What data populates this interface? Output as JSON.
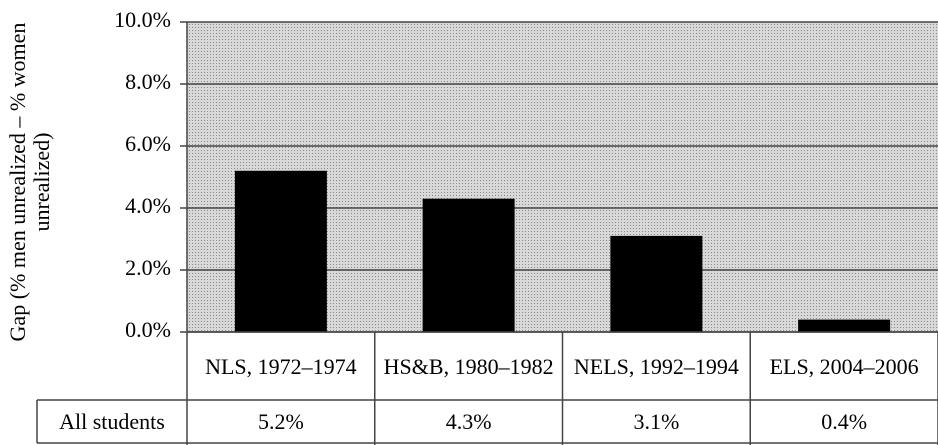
{
  "chart_data": {
    "type": "bar",
    "y_label": "Gap (% men unrealized – % women unrealized)",
    "categories": [
      "NLS, 1972–1974",
      "HS&B, 1980–1982",
      "NELS, 1992–1994",
      "ELS, 2004–2006"
    ],
    "series": [
      {
        "name": "All students",
        "color": "#000000",
        "values": [
          5.2,
          4.3,
          3.1,
          0.4
        ],
        "value_labels": [
          "5.2%",
          "4.3%",
          "3.1%",
          "0.4%"
        ]
      }
    ],
    "ylim": [
      0,
      10
    ],
    "yticks": [
      {
        "value": 0,
        "label": "0.0%"
      },
      {
        "value": 2,
        "label": "2.0%"
      },
      {
        "value": 4,
        "label": "4.0%"
      },
      {
        "value": 6,
        "label": "6.0%"
      },
      {
        "value": 8,
        "label": "8.0%"
      },
      {
        "value": 10,
        "label": "10.0%"
      }
    ],
    "grid": true
  }
}
